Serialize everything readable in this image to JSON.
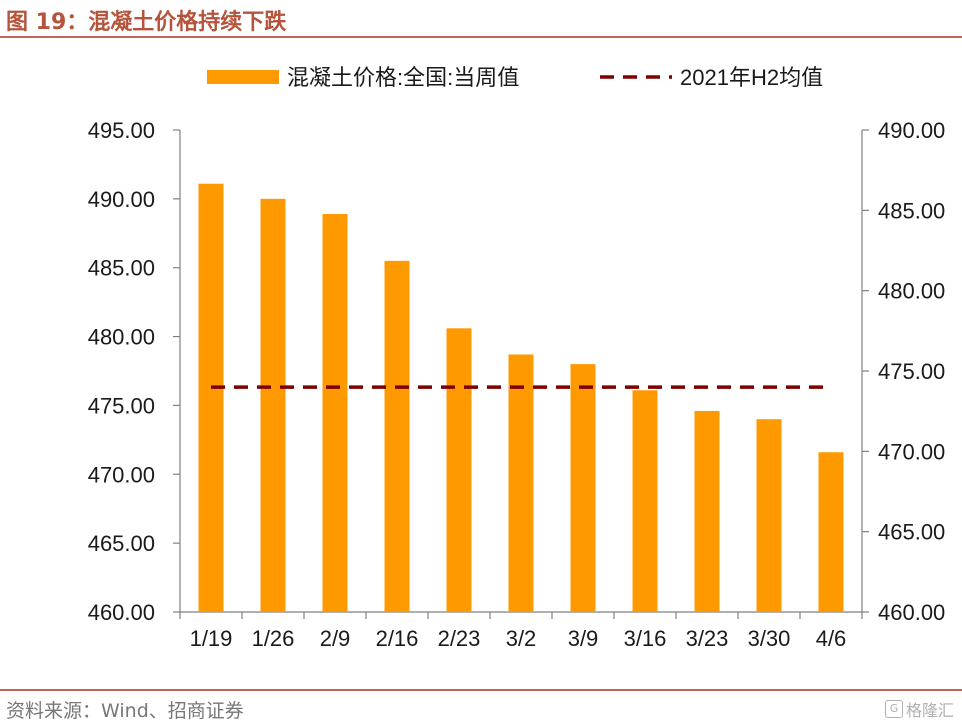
{
  "header": {
    "figure_title": "图 19：混凝土价格持续下跌"
  },
  "footer": {
    "source": "资料来源：Wind、招商证券",
    "watermark": "格隆汇"
  },
  "colors": {
    "bar": "#ff9900",
    "dashed_line": "#7f0000",
    "title": "#b5533c",
    "rule": "#c0665a"
  },
  "chart_data": {
    "type": "bar",
    "categories": [
      "1/19",
      "1/26",
      "2/9",
      "2/16",
      "2/23",
      "3/2",
      "3/9",
      "3/16",
      "3/23",
      "3/30",
      "4/6"
    ],
    "series": [
      {
        "name": "混凝土价格:全国:当周值",
        "type": "bar",
        "axis": "left",
        "values": [
          491.1,
          490.0,
          488.9,
          485.5,
          480.6,
          478.7,
          478.0,
          476.1,
          474.6,
          474.0,
          471.6
        ]
      },
      {
        "name": "2021年H2均值",
        "type": "line",
        "style": "dashed",
        "axis": "right",
        "values": [
          474,
          474,
          474,
          474,
          474,
          474,
          474,
          474,
          474,
          474,
          474
        ]
      }
    ],
    "left_axis": {
      "ylim": [
        460,
        495
      ],
      "ticks": [
        "460.00",
        "465.00",
        "470.00",
        "475.00",
        "480.00",
        "485.00",
        "490.00",
        "495.00"
      ]
    },
    "right_axis": {
      "ylim": [
        460,
        490
      ],
      "ticks": [
        "460.00",
        "465.00",
        "470.00",
        "475.00",
        "480.00",
        "485.00",
        "490.00"
      ]
    },
    "legend_position": "top",
    "grid": false
  }
}
